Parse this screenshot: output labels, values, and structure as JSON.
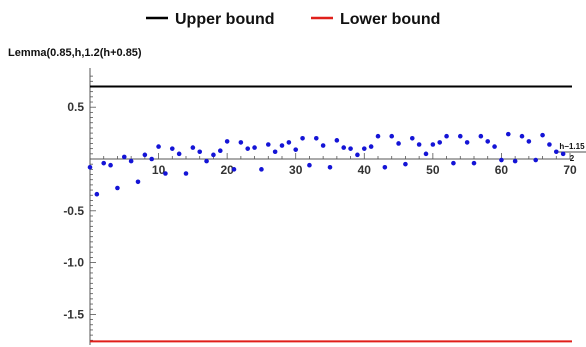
{
  "chart_data": {
    "type": "scatter",
    "title": "",
    "ylabel": "Lemma(0.85,h,1.2(h+0.85)",
    "xlabel": {
      "numerator": "h−1.15",
      "denominator": "2"
    },
    "xlim": [
      0,
      70
    ],
    "ylim": [
      -1.8,
      0.8
    ],
    "xticks": [
      10,
      20,
      30,
      40,
      50,
      60,
      70
    ],
    "yticks": [
      0.5,
      -0.5,
      -1.0,
      -1.5
    ],
    "ytick_labels": [
      "0.5",
      "-0.5",
      "-1.0",
      "-1.5"
    ],
    "legend": {
      "placement": "top",
      "entries": [
        {
          "label": "Upper bound",
          "color": "#000000"
        },
        {
          "label": "Lower bound",
          "color": "#e0201b"
        }
      ]
    },
    "lines": [
      {
        "name": "Upper bound",
        "y": 0.7,
        "color": "#000000"
      },
      {
        "name": "Lower bound",
        "y": -1.76,
        "color": "#e0201b"
      }
    ],
    "point_color": "#1414d6",
    "points": {
      "x": [
        0,
        1,
        2,
        3,
        4,
        5,
        6,
        7,
        8,
        9,
        10,
        11,
        12,
        13,
        14,
        15,
        16,
        17,
        18,
        19,
        20,
        21,
        22,
        23,
        24,
        25,
        26,
        27,
        28,
        29,
        30,
        31,
        32,
        33,
        34,
        35,
        36,
        37,
        38,
        39,
        40,
        41,
        42,
        43,
        44,
        45,
        46,
        47,
        48,
        49,
        50,
        51,
        52,
        53,
        54,
        55,
        56,
        57,
        58,
        59,
        60,
        61,
        62,
        63,
        64,
        65,
        66,
        67,
        68,
        69
      ],
      "y": [
        -0.08,
        -0.34,
        -0.04,
        -0.06,
        -0.28,
        0.02,
        -0.02,
        -0.22,
        0.04,
        0.0,
        0.12,
        -0.14,
        0.1,
        0.05,
        -0.14,
        0.11,
        0.07,
        -0.02,
        0.04,
        0.08,
        0.17,
        -0.1,
        0.16,
        0.1,
        0.11,
        -0.1,
        0.14,
        0.07,
        0.13,
        0.16,
        0.09,
        0.2,
        -0.06,
        0.2,
        0.13,
        -0.08,
        0.18,
        0.11,
        0.1,
        0.04,
        0.1,
        0.12,
        0.22,
        -0.08,
        0.22,
        0.15,
        -0.05,
        0.2,
        0.14,
        0.05,
        0.14,
        0.16,
        0.22,
        -0.04,
        0.22,
        0.16,
        -0.04,
        0.22,
        0.17,
        0.12,
        -0.01,
        0.24,
        -0.02,
        0.22,
        0.17,
        -0.01,
        0.23,
        0.14,
        0.07,
        0.05
      ]
    }
  }
}
